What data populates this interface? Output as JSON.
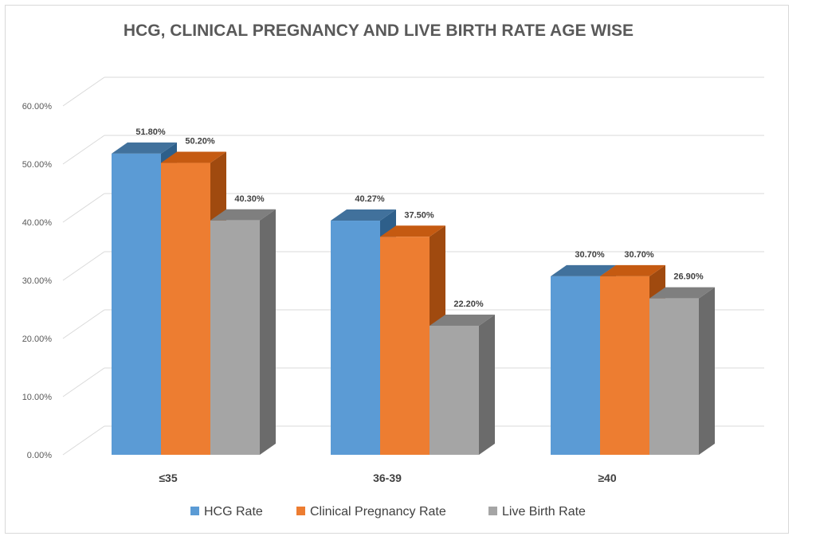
{
  "chart_data": {
    "type": "bar",
    "title": "HCG, CLINICAL PREGNANCY AND LIVE BIRTH RATE AGE WISE",
    "categories": [
      "≤35",
      "36-39",
      "≥40"
    ],
    "series": [
      {
        "name": "HCG Rate",
        "values": [
          51.8,
          40.27,
          30.7
        ],
        "labels": [
          "51.80%",
          "40.27%",
          "30.70%"
        ],
        "color": "#5b9bd5",
        "top": "#41719c",
        "side": "#2e5f8a"
      },
      {
        "name": "Clinical Pregnancy Rate",
        "values": [
          50.2,
          37.5,
          30.7
        ],
        "labels": [
          "50.20%",
          "37.50%",
          "30.70%"
        ],
        "color": "#ed7d31",
        "top": "#c55a11",
        "side": "#a04a0f"
      },
      {
        "name": "Live Birth Rate",
        "values": [
          40.3,
          22.2,
          26.9
        ],
        "labels": [
          "40.30%",
          "22.20%",
          "26.90%"
        ],
        "color": "#a5a5a5",
        "top": "#7f7f7f",
        "side": "#6b6b6b"
      }
    ],
    "y_ticks": [
      "0.00%",
      "10.00%",
      "20.00%",
      "30.00%",
      "40.00%",
      "50.00%",
      "60.00%"
    ],
    "ylim": [
      0,
      60
    ],
    "grid": true,
    "legend": "bottom",
    "style": "3d-clustered-column"
  }
}
